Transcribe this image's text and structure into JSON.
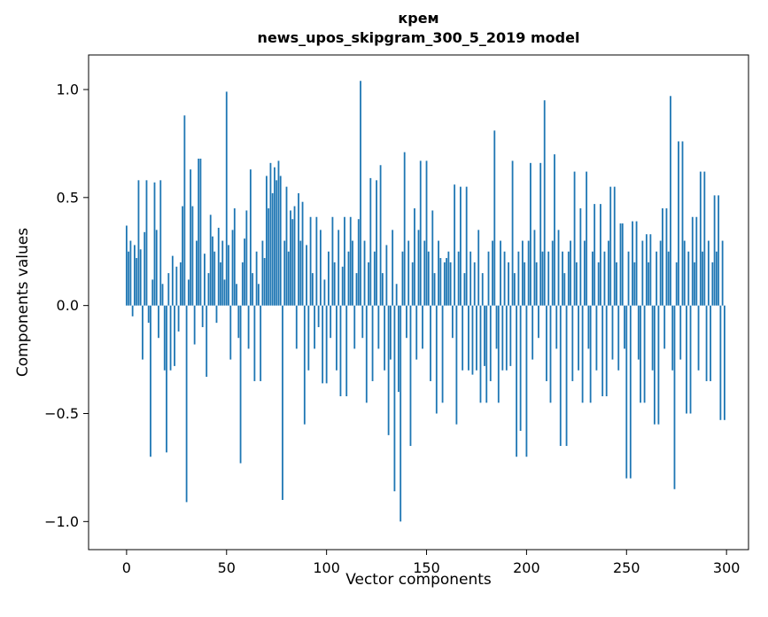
{
  "chart_data": {
    "type": "bar",
    "title": "крем",
    "subtitle": "news_upos_skipgram_300_5_2019 model",
    "xlabel": "Vector components",
    "ylabel": "Components values",
    "bar_color": "#1f77b4",
    "axes_color": "#000000",
    "background": "#ffffff",
    "n_components": 300,
    "xlim": [
      -19,
      311
    ],
    "ylim": [
      -1.13,
      1.16
    ],
    "xticks": [
      0,
      50,
      100,
      150,
      200,
      250,
      300
    ],
    "yticks": [
      {
        "v": 1.0,
        "label": "1.0"
      },
      {
        "v": 0.5,
        "label": "0.5"
      },
      {
        "v": 0.0,
        "label": "0.0"
      },
      {
        "v": -0.5,
        "label": "−0.5"
      },
      {
        "v": -1.0,
        "label": "−1.0"
      }
    ],
    "values": [
      0.37,
      0.25,
      0.3,
      -0.05,
      0.28,
      0.22,
      0.58,
      0.26,
      -0.25,
      0.34,
      0.58,
      -0.08,
      -0.7,
      0.12,
      0.57,
      0.35,
      -0.15,
      0.58,
      0.1,
      -0.3,
      -0.68,
      0.15,
      -0.3,
      0.23,
      -0.28,
      0.18,
      -0.12,
      0.2,
      0.46,
      0.88,
      -0.91,
      0.12,
      0.63,
      0.46,
      -0.18,
      0.3,
      0.68,
      0.68,
      -0.1,
      0.24,
      -0.33,
      0.15,
      0.42,
      0.32,
      0.25,
      -0.08,
      0.36,
      0.2,
      0.3,
      0.12,
      0.99,
      0.28,
      -0.25,
      0.35,
      0.45,
      0.1,
      -0.15,
      -0.73,
      0.2,
      0.31,
      0.44,
      -0.2,
      0.63,
      0.15,
      -0.35,
      0.25,
      0.1,
      -0.35,
      0.3,
      0.22,
      0.6,
      0.45,
      0.66,
      0.52,
      0.64,
      0.58,
      0.67,
      0.6,
      -0.9,
      0.3,
      0.55,
      0.25,
      0.44,
      0.4,
      0.46,
      -0.2,
      0.52,
      0.3,
      0.48,
      -0.55,
      0.28,
      -0.3,
      0.41,
      0.15,
      -0.2,
      0.41,
      -0.1,
      0.35,
      -0.36,
      0.12,
      -0.36,
      0.25,
      -0.15,
      0.41,
      0.2,
      -0.3,
      0.35,
      -0.42,
      0.18,
      0.41,
      -0.42,
      0.25,
      0.41,
      0.3,
      -0.2,
      0.15,
      0.4,
      1.04,
      -0.15,
      0.3,
      -0.45,
      0.2,
      0.59,
      -0.35,
      0.25,
      0.58,
      -0.2,
      0.65,
      0.15,
      -0.3,
      0.28,
      -0.6,
      -0.25,
      0.35,
      -0.86,
      0.1,
      -0.4,
      -1.0,
      0.25,
      0.71,
      -0.15,
      0.3,
      -0.65,
      0.2,
      0.45,
      -0.25,
      0.35,
      0.67,
      -0.2,
      0.3,
      0.67,
      0.25,
      -0.35,
      0.44,
      0.15,
      -0.5,
      0.3,
      0.22,
      -0.45,
      0.2,
      0.22,
      0.25,
      0.2,
      -0.15,
      0.56,
      -0.55,
      0.25,
      0.55,
      -0.3,
      0.15,
      0.55,
      -0.3,
      0.25,
      -0.32,
      0.2,
      -0.3,
      0.35,
      -0.45,
      0.15,
      -0.28,
      -0.45,
      0.25,
      -0.35,
      0.3,
      0.81,
      -0.2,
      -0.45,
      0.3,
      -0.3,
      0.25,
      -0.3,
      0.2,
      -0.28,
      0.67,
      0.15,
      -0.7,
      0.25,
      -0.58,
      0.3,
      0.2,
      -0.7,
      0.3,
      0.66,
      -0.25,
      0.35,
      0.2,
      -0.15,
      0.66,
      0.25,
      0.95,
      -0.35,
      0.25,
      -0.45,
      0.3,
      0.7,
      -0.2,
      0.35,
      -0.65,
      0.25,
      0.15,
      -0.65,
      0.25,
      0.3,
      -0.35,
      0.62,
      0.2,
      -0.3,
      0.45,
      -0.45,
      0.3,
      0.62,
      -0.2,
      -0.45,
      0.25,
      0.47,
      -0.3,
      0.2,
      0.47,
      -0.42,
      0.25,
      -0.42,
      0.3,
      0.55,
      -0.25,
      0.55,
      0.2,
      -0.3,
      0.38,
      0.38,
      -0.2,
      -0.8,
      0.25,
      -0.8,
      0.39,
      0.2,
      0.39,
      -0.25,
      -0.45,
      0.3,
      -0.45,
      0.33,
      0.2,
      0.33,
      -0.3,
      -0.55,
      0.25,
      -0.55,
      0.3,
      0.45,
      -0.2,
      0.45,
      0.25,
      0.97,
      -0.3,
      -0.85,
      0.2,
      0.76,
      -0.25,
      0.76,
      0.3,
      -0.5,
      0.25,
      -0.5,
      0.41,
      0.2,
      0.41,
      -0.3,
      0.62,
      0.25,
      0.62,
      -0.35,
      0.3,
      -0.35,
      0.2,
      0.51,
      0.25,
      0.51,
      -0.53,
      0.3,
      -0.53
    ]
  }
}
